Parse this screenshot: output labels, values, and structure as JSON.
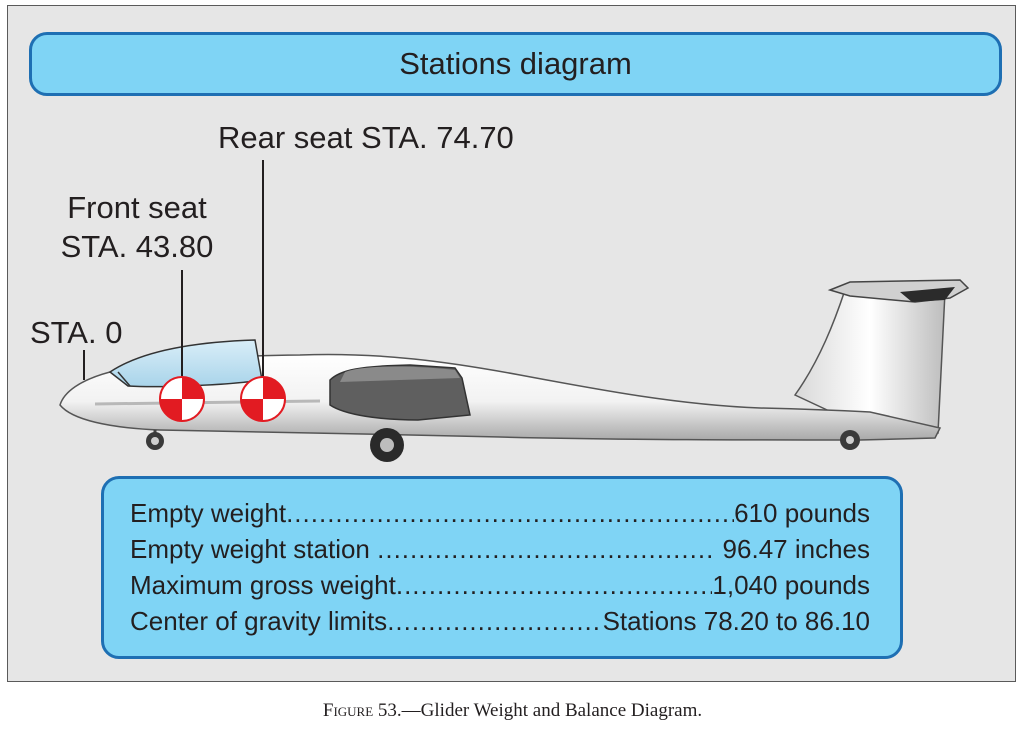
{
  "diagram": {
    "title": "Stations diagram",
    "stations": {
      "rear_seat": "Rear seat STA. 74.70",
      "front_seat_line1": "Front seat",
      "front_seat_line2": "STA. 43.80",
      "datum": "STA. 0"
    },
    "specs": [
      {
        "label": "Empty weight",
        "value": "610 pounds"
      },
      {
        "label": "Empty weight station ",
        "value": " 96.47 inches"
      },
      {
        "label": "Maximum gross weight",
        "value": "1,040 pounds"
      },
      {
        "label": "Center of gravity limits",
        "value": "Stations 78.20 to 86.10"
      }
    ],
    "colors": {
      "panel_bg": "#e6e6e6",
      "box_fill": "#7fd4f5",
      "box_border": "#1e6fb3",
      "cg_marker": "#e21b22"
    }
  },
  "caption": {
    "figure": "Figure 53.",
    "text": "—Glider Weight and Balance Diagram."
  }
}
